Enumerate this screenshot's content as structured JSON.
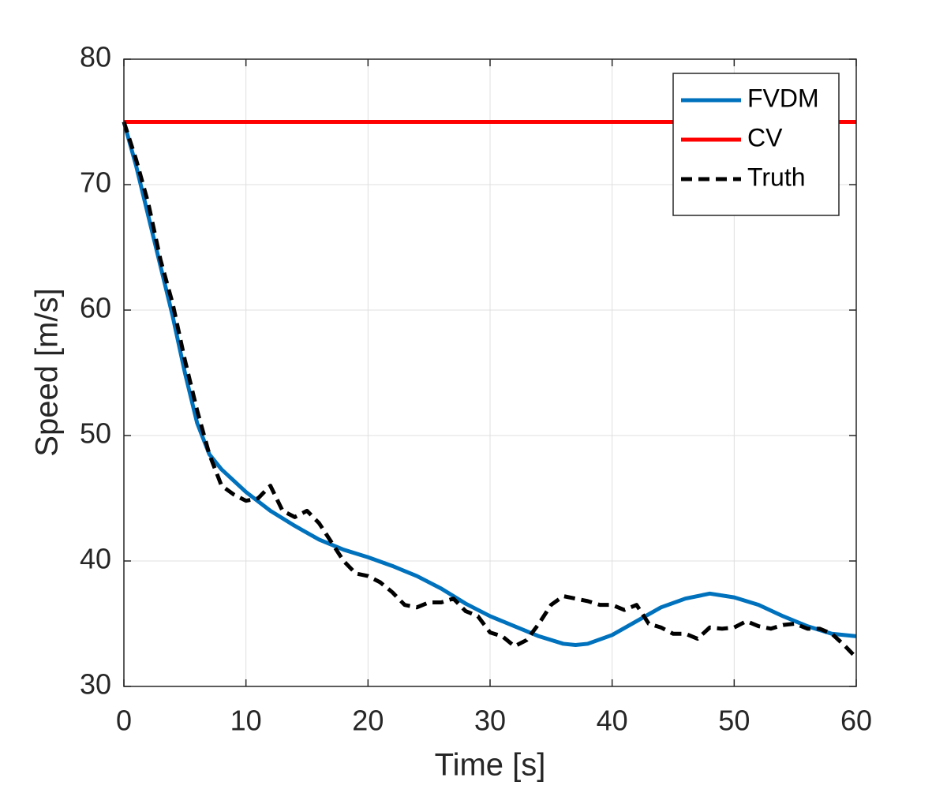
{
  "chart_data": {
    "type": "line",
    "xlabel": "Time [s]",
    "ylabel": "Speed [m/s]",
    "xlim": [
      0,
      60
    ],
    "xticks": [
      0,
      10,
      20,
      30,
      40,
      50,
      60
    ],
    "ylim": [
      30,
      80
    ],
    "yticks": [
      30,
      40,
      50,
      60,
      70,
      80
    ],
    "grid": true,
    "legend_position": "northeast",
    "series": [
      {
        "name": "FVDM",
        "color": "#0072BD",
        "line_style": "solid",
        "x": [
          0,
          1,
          2,
          3,
          4,
          5,
          6,
          7,
          8,
          10,
          12,
          14,
          16,
          18,
          20,
          22,
          24,
          26,
          28,
          30,
          32,
          34,
          36,
          37,
          38,
          40,
          42,
          44,
          46,
          48,
          50,
          52,
          54,
          56,
          58,
          60
        ],
        "values": [
          75,
          71.5,
          67.5,
          63.5,
          59.5,
          55,
          51,
          48.5,
          47.3,
          45.5,
          44,
          42.8,
          41.7,
          40.9,
          40.3,
          39.6,
          38.8,
          37.8,
          36.6,
          35.6,
          34.8,
          34,
          33.4,
          33.3,
          33.4,
          34.1,
          35.2,
          36.3,
          37,
          37.4,
          37.1,
          36.5,
          35.6,
          34.8,
          34.2,
          34
        ]
      },
      {
        "name": "CV",
        "color": "#FF0000",
        "line_style": "solid",
        "x": [
          0,
          60
        ],
        "values": [
          75,
          75
        ]
      },
      {
        "name": "Truth",
        "color": "#000000",
        "line_style": "dashed",
        "x": [
          0,
          1,
          2,
          3,
          4,
          5,
          6,
          7,
          8,
          9,
          10,
          11,
          12,
          13,
          14,
          15,
          16,
          17,
          18,
          19,
          20,
          21,
          22,
          23,
          24,
          25,
          26,
          27,
          28,
          29,
          30,
          31,
          32,
          33,
          34,
          35,
          36,
          37,
          38,
          39,
          40,
          41,
          42,
          43,
          44,
          45,
          46,
          47,
          48,
          49,
          50,
          51,
          52,
          53,
          54,
          55,
          56,
          57,
          58,
          59,
          60
        ],
        "values": [
          75,
          72,
          68.5,
          64,
          60.5,
          56,
          52,
          48.5,
          46,
          45.3,
          44.8,
          45,
          46,
          44,
          43.5,
          44,
          43,
          41.5,
          40,
          39,
          38.8,
          38.3,
          37.5,
          36.5,
          36.3,
          36.7,
          36.7,
          37,
          36,
          35.6,
          34.3,
          34,
          33.2,
          33.7,
          35,
          36.5,
          37.2,
          37,
          36.8,
          36.5,
          36.5,
          36.1,
          36.5,
          35,
          34.7,
          34.2,
          34.2,
          33.8,
          34.7,
          34.6,
          34.7,
          35.2,
          34.8,
          34.6,
          34.9,
          35,
          34.6,
          34.6,
          34.2,
          33.3,
          32.3
        ]
      }
    ]
  }
}
